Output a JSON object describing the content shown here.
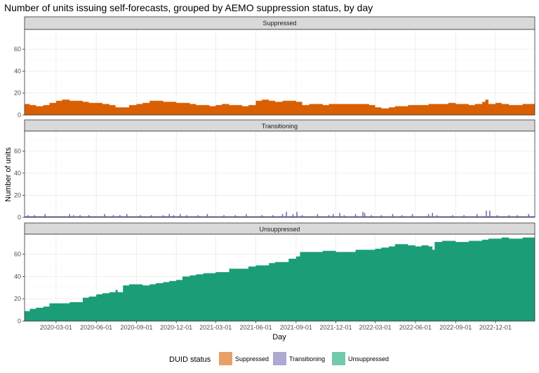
{
  "colors": {
    "Suppressed": "#d95f02",
    "Transitioning": "#7570b3",
    "Unsuppressed": "#1b9e77",
    "legend_Suppressed": "#e9a068",
    "legend_Transitioning": "#aca9d2",
    "legend_Unsuppressed": "#73c9ad",
    "strip": "#d9d9d9",
    "grid": "#ebebeb",
    "panel_border": "#333333"
  },
  "chart_data": {
    "type": "bar",
    "title": "Number of units issuing self-forecasts, grouped by AEMO suppression status, by day",
    "xlabel": "Day",
    "ylabel": "Number of units",
    "xlim": [
      "2019-12-20",
      "2023-03-01"
    ],
    "ylim": [
      0,
      78
    ],
    "y_ticks": [
      0,
      20,
      40,
      60
    ],
    "x_ticks": [
      "2020-03-01",
      "2020-06-01",
      "2020-09-01",
      "2020-12-01",
      "2021-03-01",
      "2021-06-01",
      "2021-09-01",
      "2021-12-01",
      "2022-03-01",
      "2022-06-01",
      "2022-09-01",
      "2022-12-01"
    ],
    "legend": {
      "title": "DUID status",
      "position": "bottom",
      "entries": [
        "Suppressed",
        "Transitioning",
        "Unsuppressed"
      ]
    },
    "facets": [
      {
        "name": "Suppressed",
        "style": "area",
        "points": [
          [
            "2019-12-20",
            10
          ],
          [
            "2020-01-01",
            9
          ],
          [
            "2020-01-15",
            8
          ],
          [
            "2020-02-01",
            9
          ],
          [
            "2020-02-15",
            11
          ],
          [
            "2020-03-01",
            13
          ],
          [
            "2020-03-15",
            14
          ],
          [
            "2020-04-01",
            13
          ],
          [
            "2020-04-15",
            13
          ],
          [
            "2020-05-01",
            12
          ],
          [
            "2020-05-15",
            11
          ],
          [
            "2020-06-01",
            11
          ],
          [
            "2020-06-15",
            10
          ],
          [
            "2020-07-01",
            9
          ],
          [
            "2020-07-15",
            7
          ],
          [
            "2020-08-01",
            7
          ],
          [
            "2020-08-15",
            9
          ],
          [
            "2020-09-01",
            10
          ],
          [
            "2020-09-15",
            11
          ],
          [
            "2020-10-01",
            13
          ],
          [
            "2020-10-15",
            13
          ],
          [
            "2020-11-01",
            12
          ],
          [
            "2020-11-15",
            12
          ],
          [
            "2020-12-01",
            11
          ],
          [
            "2020-12-15",
            11
          ],
          [
            "2021-01-01",
            10
          ],
          [
            "2021-01-15",
            9
          ],
          [
            "2021-02-01",
            9
          ],
          [
            "2021-02-15",
            8
          ],
          [
            "2021-03-01",
            9
          ],
          [
            "2021-03-15",
            10
          ],
          [
            "2021-04-01",
            9
          ],
          [
            "2021-04-15",
            9
          ],
          [
            "2021-05-01",
            8
          ],
          [
            "2021-05-15",
            9
          ],
          [
            "2021-06-01",
            13
          ],
          [
            "2021-06-15",
            14
          ],
          [
            "2021-07-01",
            13
          ],
          [
            "2021-07-15",
            12
          ],
          [
            "2021-08-01",
            13
          ],
          [
            "2021-08-15",
            13
          ],
          [
            "2021-09-01",
            12
          ],
          [
            "2021-09-15",
            9
          ],
          [
            "2021-10-01",
            10
          ],
          [
            "2021-10-15",
            10
          ],
          [
            "2021-11-01",
            9
          ],
          [
            "2021-11-15",
            10
          ],
          [
            "2021-12-01",
            10
          ],
          [
            "2021-12-15",
            10
          ],
          [
            "2022-01-01",
            10
          ],
          [
            "2022-01-15",
            10
          ],
          [
            "2022-02-01",
            10
          ],
          [
            "2022-02-15",
            9
          ],
          [
            "2022-03-01",
            7
          ],
          [
            "2022-03-15",
            6
          ],
          [
            "2022-04-01",
            7
          ],
          [
            "2022-04-15",
            8
          ],
          [
            "2022-05-01",
            8
          ],
          [
            "2022-05-15",
            9
          ],
          [
            "2022-06-01",
            9
          ],
          [
            "2022-06-15",
            9
          ],
          [
            "2022-07-01",
            10
          ],
          [
            "2022-07-15",
            10
          ],
          [
            "2022-08-01",
            10
          ],
          [
            "2022-08-15",
            11
          ],
          [
            "2022-09-01",
            10
          ],
          [
            "2022-09-15",
            10
          ],
          [
            "2022-10-01",
            9
          ],
          [
            "2022-10-15",
            10
          ],
          [
            "2022-11-01",
            12
          ],
          [
            "2022-11-08",
            14
          ],
          [
            "2022-11-15",
            10
          ],
          [
            "2022-12-01",
            11
          ],
          [
            "2022-12-15",
            10
          ],
          [
            "2023-01-01",
            9
          ],
          [
            "2023-01-15",
            9
          ],
          [
            "2023-02-01",
            10
          ],
          [
            "2023-02-15",
            10
          ],
          [
            "2023-03-01",
            10
          ]
        ]
      },
      {
        "name": "Transitioning",
        "style": "spikes",
        "baseline": 1,
        "points": [
          [
            "2019-12-28",
            2
          ],
          [
            "2020-01-12",
            2
          ],
          [
            "2020-02-05",
            3
          ],
          [
            "2020-04-01",
            3
          ],
          [
            "2020-04-10",
            2
          ],
          [
            "2020-04-25",
            2
          ],
          [
            "2020-05-15",
            2
          ],
          [
            "2020-06-20",
            3
          ],
          [
            "2020-07-10",
            2
          ],
          [
            "2020-07-25",
            2
          ],
          [
            "2020-08-10",
            3
          ],
          [
            "2020-09-10",
            2
          ],
          [
            "2020-10-05",
            2
          ],
          [
            "2020-11-01",
            2
          ],
          [
            "2020-11-15",
            3
          ],
          [
            "2020-11-25",
            2
          ],
          [
            "2020-12-10",
            3
          ],
          [
            "2020-12-25",
            2
          ],
          [
            "2021-01-20",
            2
          ],
          [
            "2021-02-10",
            3
          ],
          [
            "2021-03-20",
            2
          ],
          [
            "2021-04-15",
            2
          ],
          [
            "2021-05-10",
            3
          ],
          [
            "2021-06-15",
            2
          ],
          [
            "2021-07-10",
            2
          ],
          [
            "2021-08-01",
            3
          ],
          [
            "2021-08-10",
            5
          ],
          [
            "2021-08-25",
            3
          ],
          [
            "2021-09-03",
            5
          ],
          [
            "2021-09-15",
            2
          ],
          [
            "2021-10-20",
            3
          ],
          [
            "2021-11-15",
            2
          ],
          [
            "2021-11-25",
            3
          ],
          [
            "2021-12-10",
            4
          ],
          [
            "2021-12-20",
            2
          ],
          [
            "2022-01-15",
            3
          ],
          [
            "2022-02-01",
            5
          ],
          [
            "2022-02-05",
            4
          ],
          [
            "2022-02-20",
            2
          ],
          [
            "2022-03-15",
            2
          ],
          [
            "2022-04-10",
            3
          ],
          [
            "2022-05-01",
            2
          ],
          [
            "2022-05-25",
            3
          ],
          [
            "2022-07-01",
            3
          ],
          [
            "2022-07-10",
            4
          ],
          [
            "2022-07-20",
            2
          ],
          [
            "2022-08-25",
            2
          ],
          [
            "2022-09-20",
            2
          ],
          [
            "2022-10-20",
            3
          ],
          [
            "2022-11-10",
            6
          ],
          [
            "2022-11-18",
            6
          ],
          [
            "2022-12-05",
            2
          ],
          [
            "2023-01-01",
            2
          ],
          [
            "2023-01-20",
            2
          ],
          [
            "2023-02-15",
            3
          ]
        ]
      },
      {
        "name": "Unsuppressed",
        "style": "area",
        "points": [
          [
            "2019-12-20",
            9
          ],
          [
            "2020-01-01",
            11
          ],
          [
            "2020-01-15",
            12
          ],
          [
            "2020-02-01",
            13
          ],
          [
            "2020-02-15",
            16
          ],
          [
            "2020-03-01",
            16
          ],
          [
            "2020-04-01",
            17
          ],
          [
            "2020-04-15",
            17
          ],
          [
            "2020-05-01",
            21
          ],
          [
            "2020-05-15",
            22
          ],
          [
            "2020-06-01",
            24
          ],
          [
            "2020-06-15",
            25
          ],
          [
            "2020-07-01",
            26
          ],
          [
            "2020-07-15",
            28
          ],
          [
            "2020-07-20",
            26
          ],
          [
            "2020-08-01",
            32
          ],
          [
            "2020-08-15",
            33
          ],
          [
            "2020-09-01",
            33
          ],
          [
            "2020-09-15",
            32
          ],
          [
            "2020-10-01",
            33
          ],
          [
            "2020-10-15",
            34
          ],
          [
            "2020-11-01",
            35
          ],
          [
            "2020-11-15",
            36
          ],
          [
            "2020-12-01",
            37
          ],
          [
            "2020-12-15",
            40
          ],
          [
            "2021-01-01",
            41
          ],
          [
            "2021-01-15",
            42
          ],
          [
            "2021-02-01",
            43
          ],
          [
            "2021-03-01",
            44
          ],
          [
            "2021-04-01",
            47
          ],
          [
            "2021-05-01",
            47
          ],
          [
            "2021-05-15",
            49
          ],
          [
            "2021-06-01",
            50
          ],
          [
            "2021-06-15",
            50
          ],
          [
            "2021-07-01",
            52
          ],
          [
            "2021-07-15",
            53
          ],
          [
            "2021-08-01",
            53
          ],
          [
            "2021-08-15",
            56
          ],
          [
            "2021-09-01",
            58
          ],
          [
            "2021-09-10",
            62
          ],
          [
            "2021-10-01",
            62
          ],
          [
            "2021-11-01",
            63
          ],
          [
            "2021-12-01",
            62
          ],
          [
            "2022-01-01",
            62
          ],
          [
            "2022-01-15",
            64
          ],
          [
            "2022-02-01",
            64
          ],
          [
            "2022-03-01",
            65
          ],
          [
            "2022-03-15",
            66
          ],
          [
            "2022-04-01",
            67
          ],
          [
            "2022-04-15",
            69
          ],
          [
            "2022-05-01",
            69
          ],
          [
            "2022-05-15",
            68
          ],
          [
            "2022-06-01",
            67
          ],
          [
            "2022-06-15",
            68
          ],
          [
            "2022-07-01",
            67
          ],
          [
            "2022-07-10",
            64
          ],
          [
            "2022-07-15",
            71
          ],
          [
            "2022-08-01",
            72
          ],
          [
            "2022-09-01",
            71
          ],
          [
            "2022-10-01",
            72
          ],
          [
            "2022-11-01",
            73
          ],
          [
            "2022-11-15",
            74
          ],
          [
            "2022-12-01",
            74
          ],
          [
            "2022-12-15",
            75
          ],
          [
            "2023-01-01",
            74
          ],
          [
            "2023-02-01",
            75
          ],
          [
            "2023-03-01",
            74
          ]
        ]
      }
    ]
  }
}
